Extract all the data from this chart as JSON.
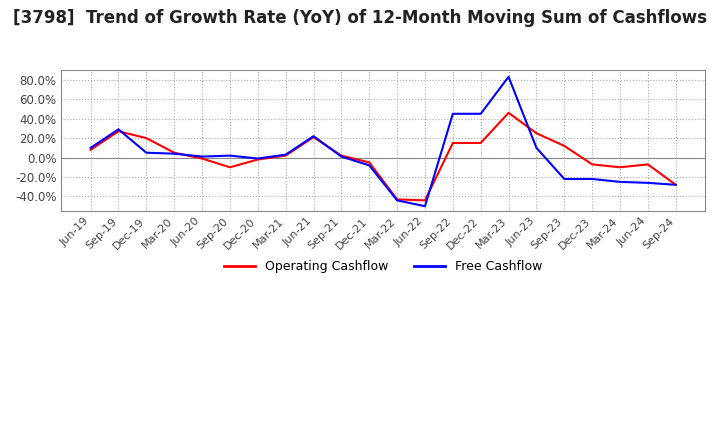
{
  "title": "[3798]  Trend of Growth Rate (YoY) of 12-Month Moving Sum of Cashflows",
  "title_fontsize": 12,
  "x_labels": [
    "Jun-19",
    "Sep-19",
    "Dec-19",
    "Mar-20",
    "Jun-20",
    "Sep-20",
    "Dec-20",
    "Mar-21",
    "Jun-21",
    "Sep-21",
    "Dec-21",
    "Mar-22",
    "Jun-22",
    "Sep-22",
    "Dec-22",
    "Mar-23",
    "Jun-23",
    "Sep-23",
    "Dec-23",
    "Mar-24",
    "Jun-24",
    "Sep-24"
  ],
  "operating_cashflow": [
    8.0,
    27.0,
    20.0,
    5.0,
    -1.0,
    -10.0,
    -2.0,
    2.0,
    21.0,
    2.0,
    -5.0,
    -43.0,
    -44.0,
    15.0,
    15.0,
    46.0,
    25.0,
    12.0,
    -7.0,
    -10.0,
    -7.0,
    -28.0
  ],
  "free_cashflow": [
    10.0,
    29.0,
    5.0,
    4.0,
    1.0,
    2.0,
    -1.0,
    3.0,
    22.0,
    1.0,
    -8.0,
    -44.0,
    -50.0,
    45.0,
    45.0,
    83.0,
    10.0,
    -22.0,
    -22.0,
    -25.0,
    -26.0,
    -28.0
  ],
  "operating_color": "#FF0000",
  "free_color": "#0000FF",
  "ylim": [
    -55,
    90
  ],
  "yticks": [
    -40.0,
    -20.0,
    0.0,
    20.0,
    40.0,
    60.0,
    80.0
  ],
  "grid_color": "#aaaaaa",
  "background_color": "#ffffff",
  "legend_labels": [
    "Operating Cashflow",
    "Free Cashflow"
  ]
}
